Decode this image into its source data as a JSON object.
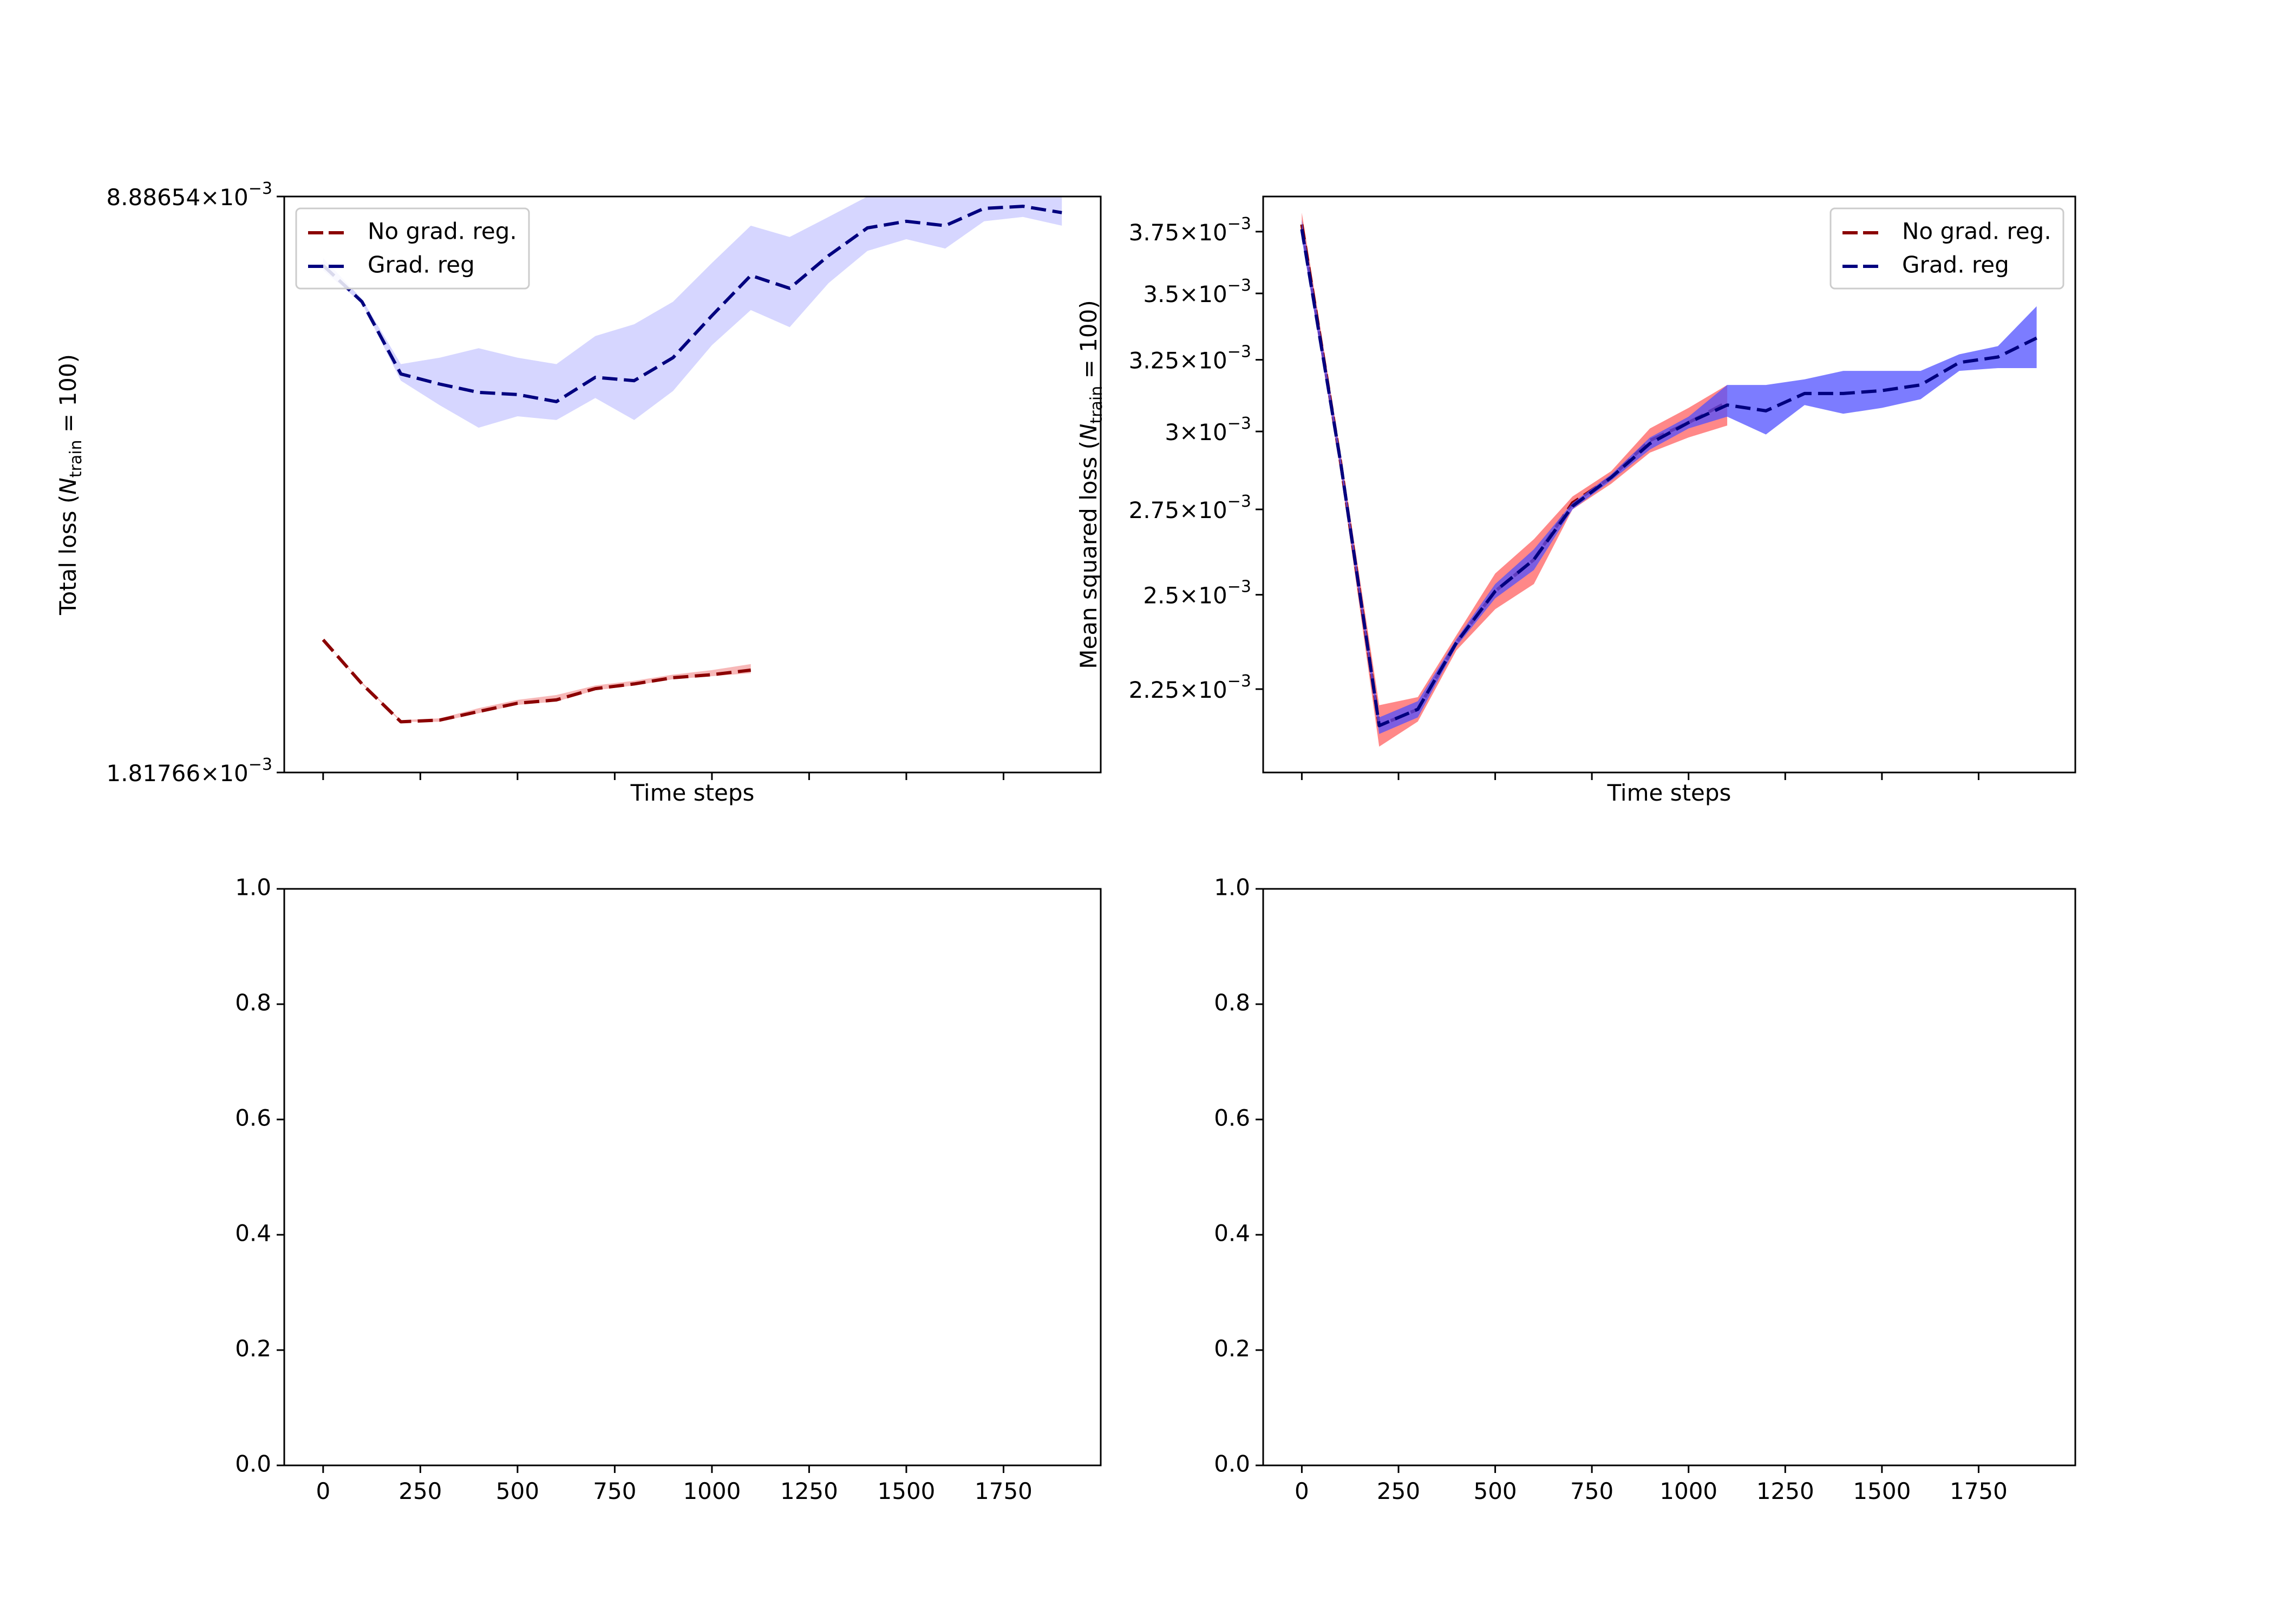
{
  "chart_data": [
    {
      "type": "line",
      "panel": "top-left",
      "xlabel": "Time steps",
      "ylabel": "Total loss (N_train = 100)",
      "ylabel_main": "Total loss (",
      "ylabel_var": "N",
      "ylabel_sub": "train",
      "ylabel_tail": " = 100)",
      "yscale": "log",
      "xlim": [
        -100,
        2000
      ],
      "ylim": [
        0.00181766,
        0.00888654
      ],
      "x_ticks_visible": false,
      "y_tick_labels": [
        {
          "value": 0.00888654,
          "mantissa": "8.88654",
          "base": "10",
          "exp": "−3"
        },
        {
          "value": 0.00181766,
          "mantissa": "1.81766",
          "base": "10",
          "exp": "−3"
        }
      ],
      "legend": {
        "placement": "upper-left",
        "entries": [
          "No grad. reg.",
          "Grad. reg"
        ]
      },
      "series": [
        {
          "name": "No grad. reg.",
          "color": "#8b0000",
          "band_color": "#f4a0a0",
          "x": [
            0,
            100,
            200,
            300,
            400,
            500,
            600,
            700,
            800,
            900,
            1000,
            1100
          ],
          "y": [
            0.00262,
            0.00232,
            0.00209,
            0.0021,
            0.00215,
            0.0022,
            0.00222,
            0.00229,
            0.00232,
            0.00236,
            0.00238,
            0.00241
          ],
          "y_low": [
            0.00262,
            0.00232,
            0.00209,
            0.00209,
            0.00214,
            0.00219,
            0.00221,
            0.00228,
            0.00231,
            0.00235,
            0.00237,
            0.00239
          ],
          "y_high": [
            0.00262,
            0.00233,
            0.0021,
            0.00211,
            0.00217,
            0.00222,
            0.00225,
            0.00231,
            0.00234,
            0.00238,
            0.00241,
            0.00245
          ]
        },
        {
          "name": "Grad. reg",
          "color": "#00007f",
          "band_color": "#c8c8ff",
          "x": [
            0,
            100,
            200,
            300,
            400,
            500,
            600,
            700,
            800,
            900,
            1000,
            1100,
            1200,
            1300,
            1400,
            1500,
            1600,
            1700,
            1800,
            1900
          ],
          "y": [
            0.00735,
            0.00665,
            0.00545,
            0.0053,
            0.00518,
            0.00515,
            0.00505,
            0.0054,
            0.00535,
            0.0057,
            0.0064,
            0.00715,
            0.0069,
            0.00755,
            0.00815,
            0.0083,
            0.0082,
            0.0086,
            0.00865,
            0.0085
          ],
          "y_low": [
            0.00725,
            0.00662,
            0.00535,
            0.005,
            0.0047,
            0.00485,
            0.0048,
            0.0051,
            0.0048,
            0.0052,
            0.0059,
            0.0065,
            0.0062,
            0.007,
            0.00765,
            0.0079,
            0.0077,
            0.0083,
            0.0084,
            0.0082
          ],
          "y_high": [
            0.0075,
            0.0067,
            0.0056,
            0.0057,
            0.00585,
            0.0057,
            0.0056,
            0.00605,
            0.00625,
            0.00665,
            0.0074,
            0.0082,
            0.00795,
            0.0084,
            0.00888654,
            0.00888654,
            0.00888654,
            0.00888654,
            0.00888654,
            0.00888654
          ]
        }
      ]
    },
    {
      "type": "line",
      "panel": "top-right",
      "xlabel": "Time steps",
      "ylabel": "Mean squared loss (N_train = 100)",
      "ylabel_main": "Mean squared loss (",
      "ylabel_var": "N",
      "ylabel_sub": "train",
      "ylabel_tail": " = 100)",
      "yscale": "log",
      "xlim": [
        -100,
        2000
      ],
      "ylim": [
        0.00205,
        0.0039
      ],
      "x_ticks_visible": false,
      "y_tick_labels": [
        {
          "value": 0.00375,
          "mantissa": "3.75",
          "base": "10",
          "exp": "−3"
        },
        {
          "value": 0.0035,
          "mantissa": "3.5",
          "base": "10",
          "exp": "−3"
        },
        {
          "value": 0.00325,
          "mantissa": "3.25",
          "base": "10",
          "exp": "−3"
        },
        {
          "value": 0.003,
          "mantissa": "3",
          "base": "10",
          "exp": "−3"
        },
        {
          "value": 0.00275,
          "mantissa": "2.75",
          "base": "10",
          "exp": "−3"
        },
        {
          "value": 0.0025,
          "mantissa": "2.5",
          "base": "10",
          "exp": "−3"
        },
        {
          "value": 0.00225,
          "mantissa": "2.25",
          "base": "10",
          "exp": "−3"
        }
      ],
      "legend": {
        "placement": "upper-right",
        "entries": [
          "No grad. reg.",
          "Grad. reg"
        ]
      },
      "series": [
        {
          "name": "No grad. reg.",
          "color": "#8b0000",
          "band_color": "#ff6060",
          "x": [
            0,
            100,
            200,
            300,
            400,
            500,
            600,
            700,
            800,
            900,
            1000,
            1100
          ],
          "y": [
            0.00378,
            0.0029,
            0.00216,
            0.0022,
            0.00237,
            0.00251,
            0.0026,
            0.00277,
            0.00285,
            0.00297,
            0.00303,
            0.0031
          ],
          "y_low": [
            0.00373,
            0.00287,
            0.00211,
            0.00217,
            0.00235,
            0.00246,
            0.00253,
            0.00275,
            0.00283,
            0.00293,
            0.00298,
            0.00302
          ],
          "y_high": [
            0.00383,
            0.00293,
            0.00221,
            0.00223,
            0.00239,
            0.00256,
            0.00266,
            0.00279,
            0.00287,
            0.00301,
            0.00308,
            0.00316
          ]
        },
        {
          "name": "Grad. reg",
          "color": "#00007f",
          "band_color": "#5050ff",
          "x": [
            0,
            100,
            200,
            300,
            400,
            500,
            600,
            700,
            800,
            900,
            1000,
            1100,
            1200,
            1300,
            1400,
            1500,
            1600,
            1700,
            1800,
            1900
          ],
          "y": [
            0.00376,
            0.0029,
            0.00216,
            0.0022,
            0.00237,
            0.00251,
            0.0026,
            0.00276,
            0.00285,
            0.00296,
            0.00303,
            0.00309,
            0.00307,
            0.00313,
            0.00313,
            0.00314,
            0.00316,
            0.00324,
            0.00326,
            0.00333
          ],
          "y_low": [
            0.00372,
            0.00288,
            0.00214,
            0.00218,
            0.00236,
            0.00249,
            0.00257,
            0.00275,
            0.00284,
            0.00294,
            0.00301,
            0.00305,
            0.00299,
            0.00309,
            0.00306,
            0.00308,
            0.00311,
            0.00321,
            0.00322,
            0.00322
          ],
          "y_high": [
            0.0038,
            0.00292,
            0.00218,
            0.00222,
            0.00238,
            0.00253,
            0.00263,
            0.00277,
            0.00286,
            0.00298,
            0.00305,
            0.00316,
            0.00316,
            0.00318,
            0.00321,
            0.00321,
            0.00321,
            0.00327,
            0.0033,
            0.00345
          ]
        }
      ]
    },
    {
      "type": "line",
      "panel": "bottom-left",
      "xlabel": "",
      "ylabel": "",
      "yscale": "linear",
      "xlim": [
        -100,
        2000
      ],
      "ylim": [
        0,
        1
      ],
      "x_ticks": [
        0,
        250,
        500,
        750,
        1000,
        1250,
        1500,
        1750
      ],
      "x_tick_labels": [
        "0",
        "250",
        "500",
        "750",
        "1000",
        "1250",
        "1500",
        "1750"
      ],
      "y_ticks": [
        0.0,
        0.2,
        0.4,
        0.6,
        0.8,
        1.0
      ],
      "y_tick_labels": [
        "0.0",
        "0.2",
        "0.4",
        "0.6",
        "0.8",
        "1.0"
      ],
      "series": []
    },
    {
      "type": "line",
      "panel": "bottom-right",
      "xlabel": "",
      "ylabel": "",
      "yscale": "linear",
      "xlim": [
        -100,
        2000
      ],
      "ylim": [
        0,
        1
      ],
      "x_ticks": [
        0,
        250,
        500,
        750,
        1000,
        1250,
        1500,
        1750
      ],
      "x_tick_labels": [
        "0",
        "250",
        "500",
        "750",
        "1000",
        "1250",
        "1500",
        "1750"
      ],
      "y_ticks": [
        0.0,
        0.2,
        0.4,
        0.6,
        0.8,
        1.0
      ],
      "y_tick_labels": [
        "0.0",
        "0.2",
        "0.4",
        "0.6",
        "0.8",
        "1.0"
      ],
      "series": []
    }
  ]
}
